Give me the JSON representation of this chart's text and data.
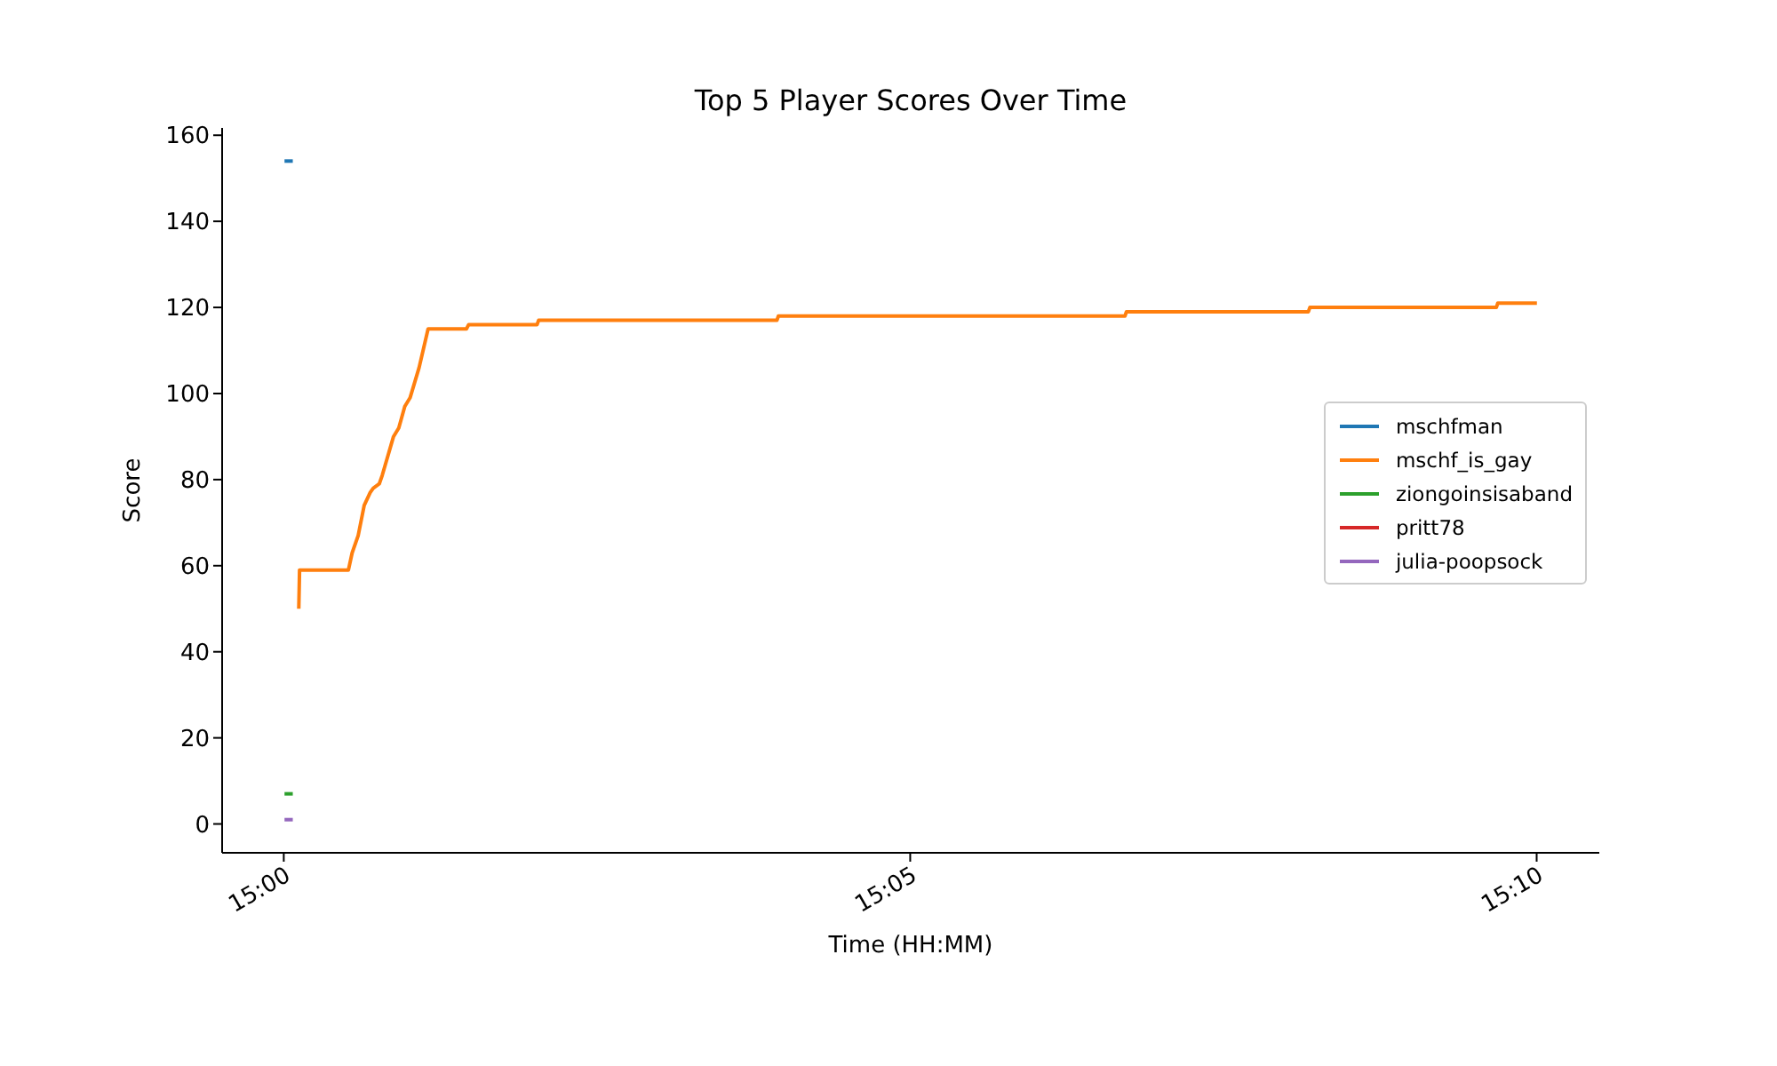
{
  "chart_data": {
    "type": "line",
    "title": "Top 5 Player Scores Over Time",
    "xlabel": "Time (HH:MM)",
    "ylabel": "Score",
    "xlim": [
      14.9918,
      15.175
    ],
    "xticks": [
      {
        "value": 15,
        "label": "15:00"
      },
      {
        "value": 15.083333,
        "label": "15:05"
      },
      {
        "value": 15.166667,
        "label": "15:10"
      }
    ],
    "ylim": [
      -6.7,
      161.7
    ],
    "yticks": [
      0,
      20,
      40,
      60,
      80,
      100,
      120,
      140,
      160
    ],
    "legend": "right",
    "series": [
      {
        "name": "mschfman",
        "color": "#1f77b4",
        "x": [
          15.0001,
          15.0012
        ],
        "values": [
          154,
          154
        ]
      },
      {
        "name": "mschf_is_gay",
        "color": "#ff7f0e",
        "x": [
          15.002,
          15.0021,
          15.0086,
          15.0091,
          15.0099,
          15.0107,
          15.0115,
          15.0119,
          15.0127,
          15.0131,
          15.0146,
          15.0153,
          15.0161,
          15.0168,
          15.018,
          15.0192,
          15.0243,
          15.0246,
          15.0337,
          15.0339,
          15.0656,
          15.0658,
          15.1119,
          15.1121,
          15.1363,
          15.1365,
          15.1613,
          15.1615,
          15.1667
        ],
        "values": [
          50,
          59,
          59,
          63,
          67,
          74,
          77,
          78,
          79,
          81,
          90,
          92,
          97,
          99,
          106,
          115,
          115,
          116,
          116,
          117,
          117,
          118,
          118,
          119,
          119,
          120,
          120,
          121,
          121
        ]
      },
      {
        "name": "ziongoinsisaband",
        "color": "#2ca02c",
        "x": [
          15.0001,
          15.0012
        ],
        "values": [
          7,
          7
        ]
      },
      {
        "name": "pritt78",
        "color": "#d62728"
      },
      {
        "name": "julia-poopsock",
        "color": "#9467bd",
        "x": [
          15.0001,
          15.0012
        ],
        "values": [
          1,
          1
        ]
      }
    ]
  }
}
